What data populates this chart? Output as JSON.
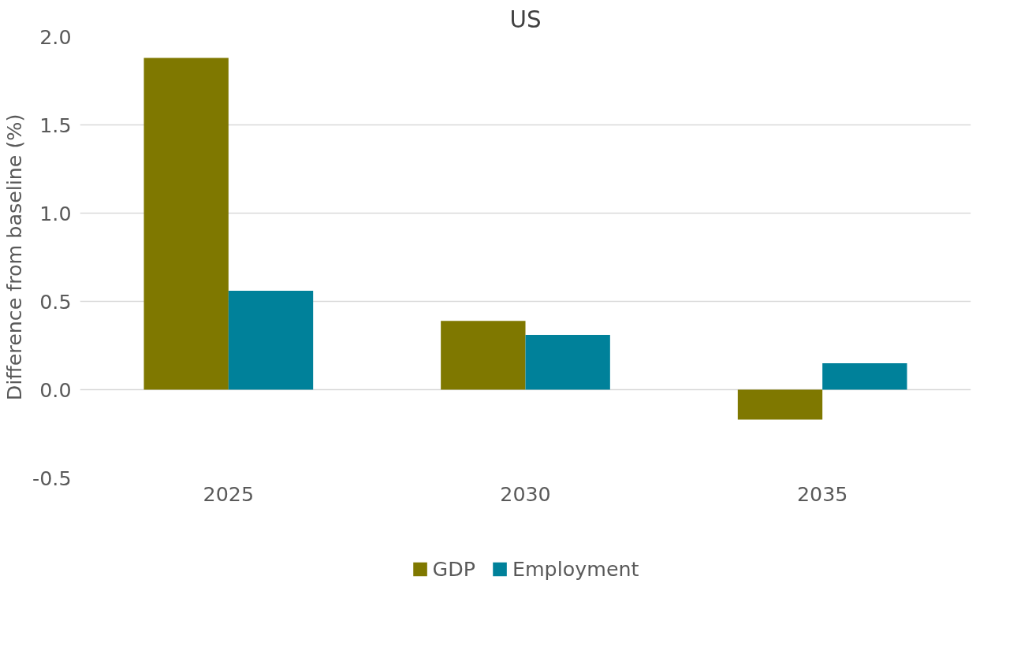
{
  "chart_data": {
    "type": "bar",
    "title": "US",
    "ylabel": "Difference from baseline (%)",
    "categories": [
      "2025",
      "2030",
      "2035"
    ],
    "series": [
      {
        "name": "GDP",
        "color": "#7f7800",
        "values": [
          1.88,
          0.39,
          -0.17
        ]
      },
      {
        "name": "Employment",
        "color": "#00819a",
        "values": [
          0.56,
          0.31,
          0.15
        ]
      }
    ],
    "ylim": [
      -0.5,
      2.0
    ],
    "yticks": [
      {
        "value": -0.5,
        "label": "-0.5"
      },
      {
        "value": 0,
        "label": "0.0"
      },
      {
        "value": 0.5,
        "label": "0.5"
      },
      {
        "value": 1.0,
        "label": "1.0"
      },
      {
        "value": 1.5,
        "label": "1.5"
      },
      {
        "value": 2.0,
        "label": "2.0"
      }
    ],
    "grid": "y",
    "legend": "bottom"
  }
}
